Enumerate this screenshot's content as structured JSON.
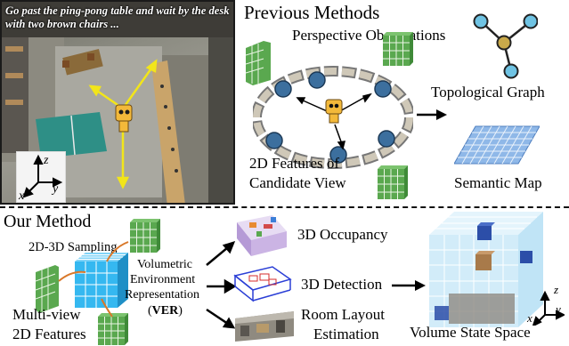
{
  "photo": {
    "instruction": "Go past the ping-pong table and wait by the desk with two brown chairs ...",
    "axes": {
      "z": "z",
      "y": "y",
      "x": "x"
    }
  },
  "previous_methods": {
    "title": "Previous Methods",
    "perspective_observations": "Perspective Observations",
    "features_label_line1": "2D Features of",
    "features_label_line2": "Candidate View",
    "topological_graph": "Topological Graph",
    "semantic_map": "Semantic Map"
  },
  "our_method": {
    "title": "Our Method",
    "sampling": "2D-3D Sampling",
    "multiview_line1": "Multi-view",
    "multiview_line2": "2D Features",
    "ver_line1": "Volumetric",
    "ver_line2": "Environment",
    "ver_line3": "Representation",
    "ver_open": "(",
    "ver_abbr": "VER",
    "ver_close": ")",
    "occupancy": "3D Occupancy",
    "detection": "3D Detection",
    "room_layout_line1": "Room Layout",
    "room_layout_line2": "Estimation",
    "volume_state_space": "Volume State Space",
    "axes": {
      "z": "z",
      "y": "y",
      "x": "x"
    }
  },
  "colors": {
    "feature_green": "#5aa84f",
    "voxel_blue": "#35b8f0",
    "graph_node_blue": "#6fc3e3",
    "graph_node_gold": "#c9a94a",
    "arrow_yellow": "#f2e51a",
    "map_blue": "#8fb8e8",
    "volume_blue": "#bfe4f7"
  }
}
